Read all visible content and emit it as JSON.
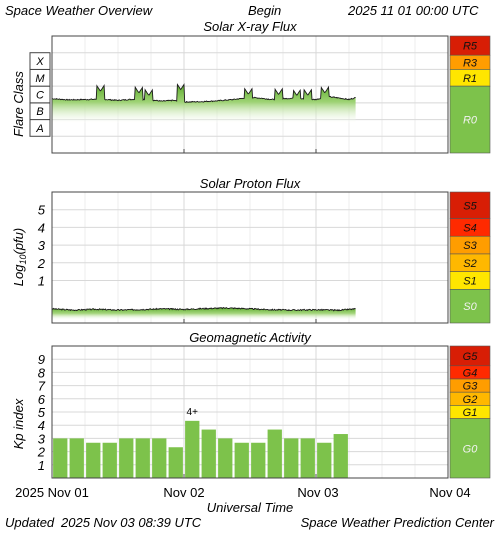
{
  "header": {
    "title": "Space Weather Overview",
    "begin_label": "Begin",
    "begin_date": "2025 11 01 00:00 UTC"
  },
  "footer": {
    "updated_label": "Updated",
    "updated_date": "2025 Nov 03 08:39 UTC",
    "credit": "Space Weather Prediction Center"
  },
  "x_axis": {
    "label": "Universal Time",
    "tick_labels": [
      "2025 Nov 01",
      "Nov 02",
      "Nov 03",
      "Nov 04"
    ],
    "range_hours": [
      0,
      72
    ],
    "tick_hours": [
      0,
      24,
      48,
      72
    ]
  },
  "colors": {
    "green": "#7dc24b",
    "yellow": "#ffe600",
    "orange": "#ff9d00",
    "red_dark": "#d81e05",
    "red_light": "#ff2a00",
    "panel_border": "#444444",
    "gridline": "#d8d8d8"
  },
  "chart_data": [
    {
      "type": "area",
      "title": "Solar X-ray Flux",
      "ylabel": "Flare Class",
      "flare_classes": [
        "A",
        "B",
        "C",
        "M",
        "X"
      ],
      "ylim": [
        -9,
        -2
      ],
      "grid": true,
      "x_hours_range": [
        0,
        55.3
      ],
      "series": [
        {
          "unit": "log10 W/m2",
          "baseline": [
            [
              0,
              -5.75
            ],
            [
              3,
              -5.82
            ],
            [
              6,
              -5.8
            ],
            [
              9,
              -5.78
            ],
            [
              12,
              -5.85
            ],
            [
              14,
              -5.8
            ],
            [
              16,
              -5.78
            ],
            [
              18,
              -5.83
            ],
            [
              20,
              -5.9
            ],
            [
              22,
              -5.85
            ],
            [
              24,
              -5.95
            ],
            [
              27,
              -5.93
            ],
            [
              30,
              -5.88
            ],
            [
              33,
              -5.8
            ],
            [
              36,
              -5.67
            ],
            [
              38,
              -5.72
            ],
            [
              40,
              -5.8
            ],
            [
              42,
              -5.75
            ],
            [
              44,
              -5.72
            ],
            [
              46,
              -5.78
            ],
            [
              48,
              -5.8
            ],
            [
              50,
              -5.62
            ],
            [
              52,
              -5.7
            ],
            [
              54,
              -5.8
            ],
            [
              55.3,
              -5.68
            ]
          ],
          "spikes": [
            [
              8.8,
              -5.3
            ],
            [
              15.8,
              -5.4
            ],
            [
              17.6,
              -5.55
            ],
            [
              23.4,
              -5.2
            ],
            [
              35.7,
              -5.48
            ],
            [
              41.2,
              -5.5
            ],
            [
              44.5,
              -5.55
            ],
            [
              46.5,
              -5.55
            ],
            [
              49.6,
              -5.4
            ]
          ]
        }
      ],
      "side_scale": [
        {
          "label": "R5",
          "color": "#d81e05"
        },
        {
          "label": "R3",
          "color": "#ff9d00"
        },
        {
          "label": "R1",
          "color": "#ffe600"
        },
        {
          "label": "R0",
          "color": "#7dc24b"
        }
      ]
    },
    {
      "type": "area",
      "title": "Solar Proton Flux",
      "ylabel": "Log10(pfu)",
      "ylabel_parts": [
        "Log",
        "10",
        "(pfu)"
      ],
      "ytick_labels": [
        "1",
        "2",
        "3",
        "4",
        "5"
      ],
      "ylim": [
        -1.4,
        6
      ],
      "grid": true,
      "x_hours_range": [
        0,
        55.3
      ],
      "series": [
        {
          "unit": "log10 pfu",
          "values": [
            [
              0,
              -0.6
            ],
            [
              4,
              -0.67
            ],
            [
              8,
              -0.62
            ],
            [
              12,
              -0.67
            ],
            [
              16,
              -0.64
            ],
            [
              20,
              -0.6
            ],
            [
              24,
              -0.63
            ],
            [
              28,
              -0.58
            ],
            [
              32,
              -0.55
            ],
            [
              36,
              -0.6
            ],
            [
              40,
              -0.65
            ],
            [
              44,
              -0.67
            ],
            [
              48,
              -0.65
            ],
            [
              52,
              -0.68
            ],
            [
              55.3,
              -0.6
            ]
          ]
        }
      ],
      "side_scale": [
        {
          "label": "S5",
          "color": "#d81e05"
        },
        {
          "label": "S4",
          "color": "#ff2a00"
        },
        {
          "label": "S3",
          "color": "#ff9d00"
        },
        {
          "label": "S2",
          "color": "#ffb800"
        },
        {
          "label": "S1",
          "color": "#ffe600"
        },
        {
          "label": "S0",
          "color": "#7dc24b"
        }
      ]
    },
    {
      "type": "bar",
      "title": "Geomagnetic Activity",
      "ylabel": "Kp index",
      "ytick_labels": [
        "1",
        "2",
        "3",
        "4",
        "5",
        "6",
        "7",
        "8",
        "9"
      ],
      "ylim": [
        0,
        10
      ],
      "grid": true,
      "bar_width_hours": 2.6,
      "values": [
        3,
        3,
        2.67,
        2.67,
        3,
        3,
        3,
        2.33,
        4.33,
        3.67,
        3,
        2.67,
        2.67,
        3.67,
        3,
        3,
        2.67,
        3.33
      ],
      "annotations": [
        {
          "index": 8,
          "text": "4+"
        }
      ],
      "side_scale": [
        {
          "label": "G5",
          "color": "#d81e05"
        },
        {
          "label": "G4",
          "color": "#ff2a00"
        },
        {
          "label": "G3",
          "color": "#ff9d00"
        },
        {
          "label": "G2",
          "color": "#ffb800"
        },
        {
          "label": "G1",
          "color": "#ffe600"
        },
        {
          "label": "G0",
          "color": "#7dc24b"
        }
      ]
    }
  ]
}
